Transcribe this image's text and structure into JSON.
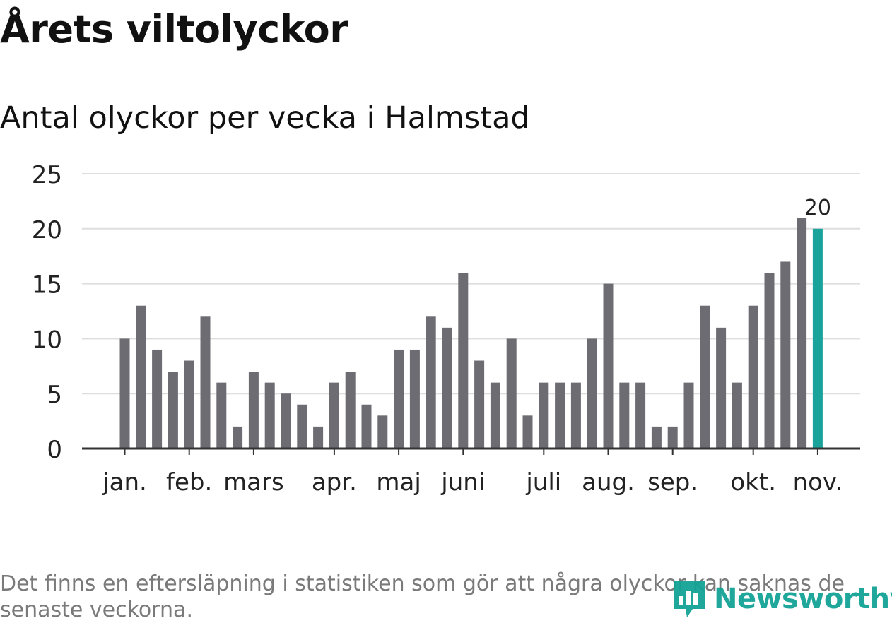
{
  "title": "Årets viltolyckor",
  "subtitle": "Antal olyckor per vecka i Halmstad",
  "footnote": "Det finns en eftersläpning i statistiken som gör att några olyckor kan saknas de senaste veckorna.",
  "brand": {
    "name": "Newsworthy",
    "color": "#14a396",
    "icon": "newsworthy-logo-icon"
  },
  "colors": {
    "bar": "#6d6c72",
    "highlight": "#1aa39a",
    "grid": "#dedede",
    "axis": "#333333"
  },
  "chart_data": {
    "type": "bar",
    "title": "Årets viltolyckor",
    "subtitle": "Antal olyckor per vecka i Halmstad",
    "xlabel": "",
    "ylabel": "",
    "ylim": [
      0,
      25
    ],
    "yticks": [
      0,
      5,
      10,
      15,
      20,
      25
    ],
    "grid": true,
    "values": [
      10,
      13,
      9,
      7,
      8,
      12,
      6,
      2,
      7,
      6,
      5,
      4,
      2,
      6,
      7,
      4,
      3,
      9,
      9,
      12,
      11,
      16,
      8,
      6,
      10,
      3,
      6,
      6,
      6,
      10,
      15,
      6,
      6,
      2,
      2,
      6,
      13,
      11,
      6,
      13,
      16,
      17,
      21,
      20
    ],
    "highlight_index": 43,
    "highlight_label": "20",
    "month_ticks": [
      {
        "label": "jan.",
        "week_index": 0
      },
      {
        "label": "feb.",
        "week_index": 4
      },
      {
        "label": "mars",
        "week_index": 8
      },
      {
        "label": "apr.",
        "week_index": 13
      },
      {
        "label": "maj",
        "week_index": 17
      },
      {
        "label": "juni",
        "week_index": 21
      },
      {
        "label": "juli",
        "week_index": 26
      },
      {
        "label": "aug.",
        "week_index": 30
      },
      {
        "label": "sep.",
        "week_index": 34
      },
      {
        "label": "okt.",
        "week_index": 39
      },
      {
        "label": "nov.",
        "week_index": 43
      }
    ]
  }
}
